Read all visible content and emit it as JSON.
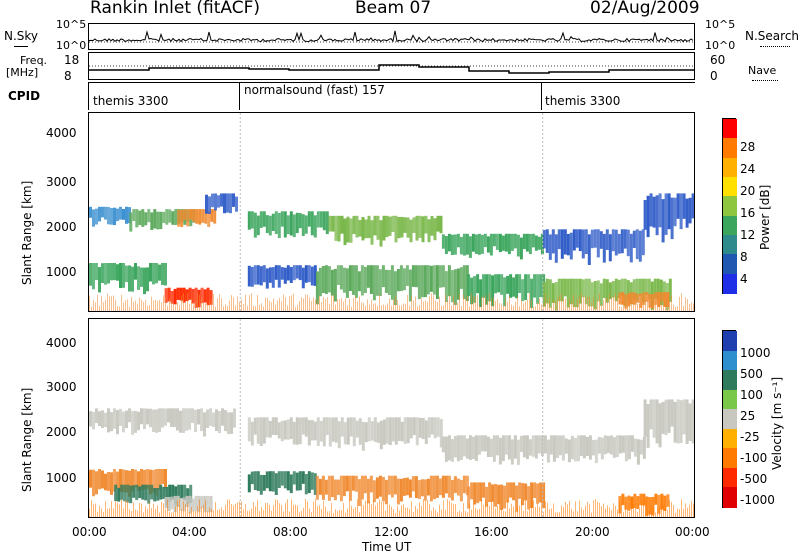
{
  "header": {
    "station": "Rankin Inlet (fitACF)",
    "beam": "Beam 07",
    "date": "02/Aug/2009"
  },
  "noise_panel": {
    "left_label": "N.Sky",
    "right_label": "N.Search",
    "left_ticks": [
      "10^5",
      "10^0"
    ],
    "right_ticks": [
      "10^5",
      "10^0"
    ]
  },
  "freq_panel": {
    "left_label": "Freq.",
    "left_unit": "[MHz]",
    "right_label": "Nave",
    "left_ticks": [
      "18",
      "8"
    ],
    "right_ticks": [
      "60",
      "0"
    ]
  },
  "cpid_panel": {
    "label": "CPID",
    "segments": [
      {
        "name": "themis 3300",
        "start_hour": 0,
        "end_hour": 6
      },
      {
        "name": "normalsound (fast) 157",
        "start_hour": 6,
        "end_hour": 18
      },
      {
        "name": "themis 3300",
        "start_hour": 18,
        "end_hour": 24
      }
    ]
  },
  "chart_data": [
    {
      "type": "heatmap",
      "title": "",
      "ylabel": "Slant Range [km]",
      "xlabel": "",
      "ylim": [
        180,
        4590
      ],
      "yticks": [
        "4000",
        "3000",
        "2000",
        "1000"
      ],
      "colorbar": {
        "label": "Power [dB]",
        "ticks": [
          "28",
          "24",
          "20",
          "16",
          "12",
          "8",
          "4"
        ],
        "colors": [
          "#ff0000",
          "#ff7a00",
          "#ffb000",
          "#ffe000",
          "#8ec63f",
          "#3aa55c",
          "#2e8b8b",
          "#1f58b0",
          "#1f2fe8"
        ]
      },
      "bands": [
        {
          "start": 0.0,
          "end": 1.6,
          "range": [
            2100,
            2500
          ],
          "color": "#3a8fd0"
        },
        {
          "start": 1.6,
          "end": 4.2,
          "range": [
            2000,
            2450
          ],
          "color": "#5aa85a"
        },
        {
          "start": 3.5,
          "end": 5.0,
          "range": [
            2050,
            2450
          ],
          "color": "#f08a30"
        },
        {
          "start": 4.6,
          "end": 5.8,
          "range": [
            2300,
            2800
          ],
          "color": "#2e5bc8"
        },
        {
          "start": 6.3,
          "end": 9.5,
          "range": [
            1800,
            2400
          ],
          "color": "#3aa55c"
        },
        {
          "start": 9.5,
          "end": 14.0,
          "range": [
            1700,
            2300
          ],
          "color": "#7ab84a"
        },
        {
          "start": 14.0,
          "end": 18.0,
          "range": [
            1400,
            1900
          ],
          "color": "#3aa55c"
        },
        {
          "start": 18.0,
          "end": 22.0,
          "range": [
            1300,
            2000
          ],
          "color": "#2e5bc8"
        },
        {
          "start": 22.0,
          "end": 24.0,
          "range": [
            1800,
            2800
          ],
          "color": "#2e5bc8"
        },
        {
          "start": 0.0,
          "end": 3.0,
          "range": [
            650,
            1250
          ],
          "color": "#3aa55c"
        },
        {
          "start": 3.0,
          "end": 4.8,
          "range": [
            250,
            700
          ],
          "color": "#ff2a00"
        },
        {
          "start": 6.3,
          "end": 9.0,
          "range": [
            700,
            1200
          ],
          "color": "#2e5bc8"
        },
        {
          "start": 9.0,
          "end": 15.0,
          "range": [
            400,
            1200
          ],
          "color": "#5aa85a"
        },
        {
          "start": 15.0,
          "end": 18.0,
          "range": [
            300,
            1000
          ],
          "color": "#3aa55c"
        },
        {
          "start": 18.0,
          "end": 23.0,
          "range": [
            250,
            900
          ],
          "color": "#7ab84a"
        },
        {
          "start": 21.0,
          "end": 23.0,
          "range": [
            250,
            600
          ],
          "color": "#f08a30"
        }
      ]
    },
    {
      "type": "heatmap",
      "title": "",
      "ylabel": "Slant Range [km]",
      "xlabel": "Time UT",
      "ylim": [
        180,
        4590
      ],
      "yticks": [
        "4000",
        "3000",
        "2000",
        "1000"
      ],
      "xticks": [
        "00:00",
        "04:00",
        "08:00",
        "12:00",
        "16:00",
        "20:00",
        "00:00"
      ],
      "colorbar": {
        "label": "Velocity [m s⁻¹]",
        "ticks": [
          "1000",
          "500",
          "100",
          "25",
          "-25",
          "-100",
          "-500",
          "-1000"
        ],
        "colors": [
          "#1f3fb0",
          "#2e8fcf",
          "#2e7a5c",
          "#7ac84a",
          "#c8c8c0",
          "#ffb000",
          "#ff7a00",
          "#ff2a00",
          "#e00000"
        ]
      },
      "bands": [
        {
          "start": 0.0,
          "end": 5.8,
          "range": [
            2050,
            2600
          ],
          "color": "#c8c8c0"
        },
        {
          "start": 6.3,
          "end": 14.0,
          "range": [
            1750,
            2400
          ],
          "color": "#c8c8c0"
        },
        {
          "start": 14.0,
          "end": 22.0,
          "range": [
            1400,
            2000
          ],
          "color": "#c8c8c0"
        },
        {
          "start": 22.0,
          "end": 24.0,
          "range": [
            1800,
            2800
          ],
          "color": "#c8c8c0"
        },
        {
          "start": 0.0,
          "end": 3.0,
          "range": [
            650,
            1250
          ],
          "color": "#f08a30"
        },
        {
          "start": 1.0,
          "end": 4.0,
          "range": [
            450,
            900
          ],
          "color": "#2e7a5c"
        },
        {
          "start": 3.0,
          "end": 4.8,
          "range": [
            250,
            650
          ],
          "color": "#c8c8c0"
        },
        {
          "start": 6.3,
          "end": 9.0,
          "range": [
            700,
            1200
          ],
          "color": "#2e7a5c"
        },
        {
          "start": 9.0,
          "end": 15.0,
          "range": [
            500,
            1100
          ],
          "color": "#f08a30"
        },
        {
          "start": 15.0,
          "end": 18.0,
          "range": [
            350,
            950
          ],
          "color": "#f08a30"
        },
        {
          "start": 21.0,
          "end": 23.0,
          "range": [
            250,
            700
          ],
          "color": "#ff7a00"
        }
      ]
    }
  ]
}
